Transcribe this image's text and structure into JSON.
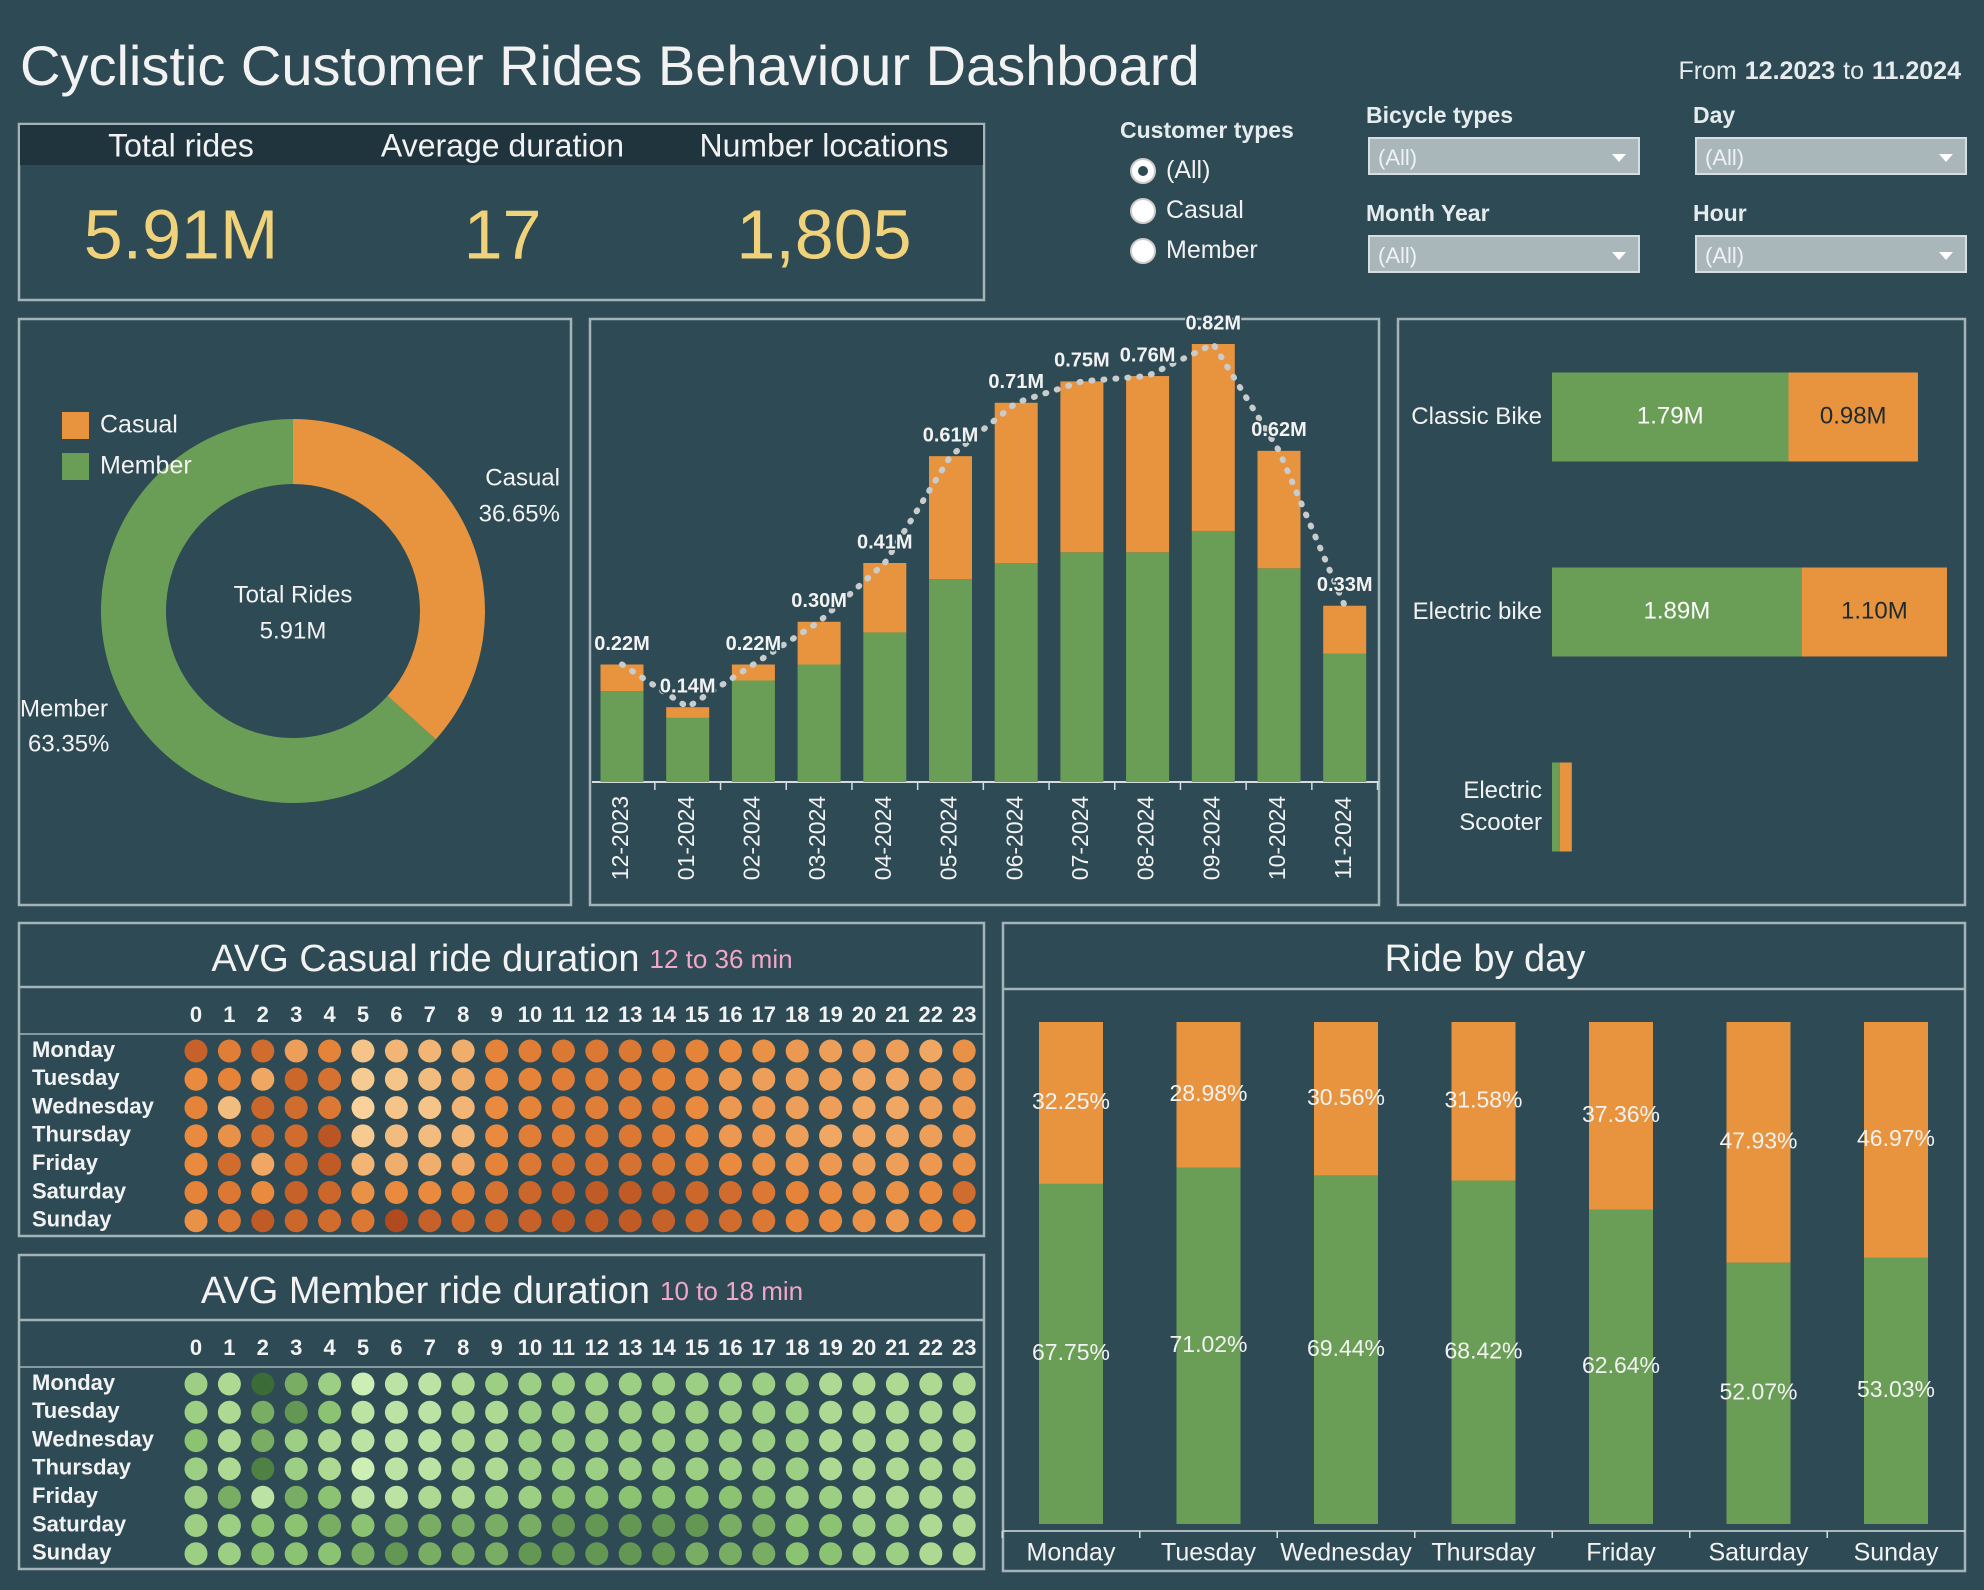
{
  "header": {
    "title": "Cyclistic Customer Rides Behaviour Dashboard",
    "period": {
      "from_text": "From",
      "from": "12.2023",
      "to_text": "to",
      "to": "11.2024"
    }
  },
  "kpis": [
    {
      "label": "Total rides",
      "value": "5.91M"
    },
    {
      "label": "Average duration",
      "value": "17"
    },
    {
      "label": "Number locations",
      "value": "1,805"
    }
  ],
  "filters": {
    "customer_types": {
      "label": "Customer types",
      "options": [
        "(All)",
        "Casual",
        "Member"
      ],
      "selected": 0
    },
    "dropdowns": [
      {
        "label": "Bicycle types",
        "value": "(All)"
      },
      {
        "label": "Day",
        "value": "(All)"
      },
      {
        "label": "Month Year",
        "value": "(All)"
      },
      {
        "label": "Hour",
        "value": "(All)"
      }
    ]
  },
  "chart_data": [
    {
      "type": "donut",
      "categories": [
        "Casual",
        "Member"
      ],
      "values": [
        36.65,
        63.35
      ],
      "value_labels": [
        "36.65%",
        "63.35%"
      ],
      "colors": [
        "#e8943f",
        "#6a9e56"
      ],
      "center_label": "Total Rides",
      "center_value": "5.91M",
      "legend": "top-left"
    },
    {
      "type": "stacked_bar_line",
      "categories": [
        "12-2023",
        "01-2024",
        "02-2024",
        "03-2024",
        "04-2024",
        "05-2024",
        "06-2024",
        "07-2024",
        "08-2024",
        "09-2024",
        "10-2024",
        "11-2024"
      ],
      "series": [
        {
          "color": "#6a9e56",
          "values": [
            0.17,
            0.12,
            0.19,
            0.22,
            0.28,
            0.38,
            0.41,
            0.43,
            0.43,
            0.47,
            0.4,
            0.24
          ]
        },
        {
          "color": "#e8943f",
          "values": [
            0.05,
            0.02,
            0.03,
            0.08,
            0.13,
            0.23,
            0.3,
            0.32,
            0.33,
            0.35,
            0.22,
            0.09
          ]
        }
      ],
      "line": {
        "color": "#c9cccd",
        "values": [
          0.22,
          0.14,
          0.22,
          0.3,
          0.41,
          0.61,
          0.71,
          0.75,
          0.76,
          0.82,
          0.62,
          0.33
        ],
        "value_labels": [
          "0.22M",
          "0.14M",
          "0.22M",
          "0.30M",
          "0.41M",
          "0.61M",
          "0.71M",
          "0.75M",
          "0.76M",
          "0.82M",
          "0.62M",
          "0.33M"
        ]
      }
    },
    {
      "type": "hbar_stacked",
      "categories": [
        "Classic Bike",
        "Electric bike",
        "Electric Scooter"
      ],
      "series": [
        {
          "color": "#6a9e56",
          "values": [
            1.79,
            1.89,
            0.06
          ],
          "value_labels": [
            "1.79M",
            "1.89M",
            null
          ]
        },
        {
          "color": "#e8943f",
          "values": [
            0.98,
            1.1,
            0.09
          ],
          "value_labels": [
            "0.98M",
            "1.10M",
            null
          ]
        }
      ]
    },
    {
      "type": "heatmap",
      "title": "AVG Casual ride duration",
      "subtitle": "12 to 36 min",
      "x": [
        0,
        1,
        2,
        3,
        4,
        5,
        6,
        7,
        8,
        9,
        10,
        11,
        12,
        13,
        14,
        15,
        16,
        17,
        18,
        19,
        20,
        21,
        22,
        23
      ],
      "categories": [
        "Monday",
        "Tuesday",
        "Wednesday",
        "Thursday",
        "Friday",
        "Saturday",
        "Sunday"
      ],
      "colors": [
        "#f8d29a",
        "#e8863a",
        "#b14a1e"
      ],
      "values": [
        [
          31,
          26,
          29,
          21,
          25,
          16,
          18,
          18,
          19,
          25,
          26,
          27,
          27,
          27,
          26,
          25,
          24,
          23,
          22,
          21,
          21,
          21,
          20,
          23
        ],
        [
          24,
          25,
          20,
          30,
          28,
          15,
          16,
          17,
          19,
          24,
          25,
          26,
          26,
          26,
          25,
          24,
          22,
          21,
          21,
          21,
          20,
          20,
          21,
          22
        ],
        [
          25,
          17,
          30,
          29,
          27,
          14,
          16,
          16,
          18,
          24,
          25,
          26,
          26,
          26,
          26,
          24,
          22,
          22,
          21,
          21,
          20,
          20,
          21,
          22
        ],
        [
          24,
          23,
          28,
          29,
          33,
          15,
          17,
          17,
          18,
          24,
          26,
          26,
          27,
          27,
          26,
          24,
          22,
          22,
          21,
          20,
          20,
          20,
          21,
          22
        ],
        [
          24,
          29,
          20,
          29,
          32,
          18,
          19,
          19,
          20,
          25,
          27,
          28,
          28,
          28,
          27,
          26,
          24,
          23,
          22,
          22,
          21,
          21,
          22,
          23
        ],
        [
          25,
          27,
          24,
          31,
          30,
          23,
          24,
          24,
          25,
          28,
          30,
          31,
          32,
          32,
          31,
          30,
          29,
          27,
          25,
          24,
          23,
          23,
          24,
          29
        ],
        [
          23,
          27,
          32,
          30,
          29,
          27,
          35,
          31,
          29,
          30,
          31,
          32,
          32,
          32,
          31,
          30,
          29,
          27,
          25,
          24,
          23,
          22,
          24,
          25
        ]
      ]
    },
    {
      "type": "heatmap",
      "title": "AVG Member ride duration",
      "subtitle": "10 to 18 min",
      "x": [
        0,
        1,
        2,
        3,
        4,
        5,
        6,
        7,
        8,
        9,
        10,
        11,
        12,
        13,
        14,
        15,
        16,
        17,
        18,
        19,
        20,
        21,
        22,
        23
      ],
      "categories": [
        "Monday",
        "Tuesday",
        "Wednesday",
        "Thursday",
        "Friday",
        "Saturday",
        "Sunday"
      ],
      "colors": [
        "#cdeeb4",
        "#8cc372",
        "#3b6b36"
      ],
      "values": [
        [
          13,
          12,
          18,
          15,
          13,
          10,
          11,
          11,
          12,
          13,
          13,
          13,
          13,
          13,
          13,
          13,
          13,
          13,
          13,
          12,
          12,
          12,
          12,
          12
        ],
        [
          13,
          12,
          15,
          16,
          14,
          11,
          11,
          11,
          12,
          12,
          13,
          13,
          13,
          13,
          13,
          13,
          13,
          13,
          13,
          12,
          12,
          12,
          12,
          12
        ],
        [
          14,
          12,
          15,
          13,
          12,
          11,
          11,
          11,
          12,
          12,
          13,
          13,
          13,
          13,
          13,
          13,
          13,
          13,
          13,
          12,
          12,
          12,
          12,
          12
        ],
        [
          13,
          12,
          17,
          13,
          12,
          10,
          11,
          11,
          12,
          12,
          13,
          13,
          13,
          13,
          13,
          13,
          13,
          13,
          13,
          12,
          12,
          12,
          12,
          12
        ],
        [
          13,
          15,
          11,
          15,
          14,
          11,
          11,
          12,
          12,
          13,
          13,
          14,
          14,
          14,
          14,
          14,
          14,
          14,
          13,
          13,
          12,
          12,
          12,
          12
        ],
        [
          13,
          13,
          14,
          14,
          15,
          14,
          15,
          15,
          15,
          15,
          15,
          16,
          16,
          16,
          16,
          16,
          15,
          15,
          14,
          14,
          13,
          13,
          12,
          12
        ],
        [
          13,
          13,
          14,
          14,
          14,
          15,
          16,
          15,
          15,
          15,
          16,
          16,
          16,
          16,
          16,
          15,
          15,
          15,
          14,
          14,
          13,
          13,
          12,
          12
        ]
      ]
    },
    {
      "type": "stacked_percent_bar",
      "title": "Ride by day",
      "categories": [
        "Monday",
        "Tuesday",
        "Wednesday",
        "Thursday",
        "Friday",
        "Saturday",
        "Sunday"
      ],
      "series": [
        {
          "color": "#6a9e56",
          "values": [
            67.75,
            71.02,
            69.44,
            68.42,
            62.64,
            52.07,
            53.03
          ],
          "value_labels": [
            "67.75%",
            "71.02%",
            "69.44%",
            "68.42%",
            "62.64%",
            "52.07%",
            "53.03%"
          ]
        },
        {
          "color": "#e8943f",
          "values": [
            32.25,
            28.98,
            30.56,
            31.58,
            37.36,
            47.93,
            46.97
          ],
          "value_labels": [
            "32.25%",
            "28.98%",
            "30.56%",
            "31.58%",
            "37.36%",
            "47.93%",
            "46.97%"
          ]
        }
      ]
    }
  ]
}
